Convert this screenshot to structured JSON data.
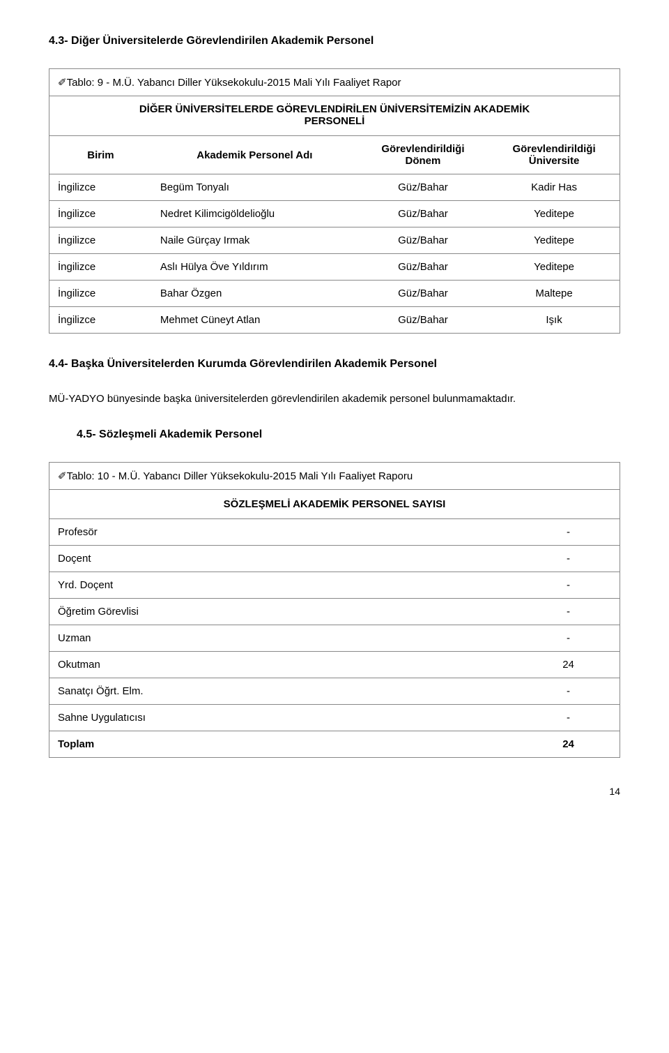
{
  "section43": {
    "heading": "4.3- Diğer Üniversitelerde Görevlendirilen Akademik Personel",
    "table": {
      "caption_prefix": "✐Tablo: 9 - ",
      "caption": "M.Ü. Yabancı Diller Yüksekokulu-2015 Mali Yılı Faaliyet Rapor",
      "subtitle_line1": "DİĞER ÜNİVERSİTELERDE GÖREVLENDİRİLEN ÜNİVERSİTEMİZİN AKADEMİK",
      "subtitle_line2": "PERSONELİ",
      "columns": {
        "c0": "Birim",
        "c1": "Akademik Personel Adı",
        "c2_l1": "Görevlendirildiği",
        "c2_l2": "Dönem",
        "c3_l1": "Görevlendirildiği",
        "c3_l2": "Üniversite"
      },
      "rows": [
        {
          "a": "İngilizce",
          "b": "Begüm Tonyalı",
          "c": "Güz/Bahar",
          "d": "Kadir Has"
        },
        {
          "a": "İngilizce",
          "b": "Nedret Kilimcigöldelioğlu",
          "c": "Güz/Bahar",
          "d": "Yeditepe"
        },
        {
          "a": "İngilizce",
          "b": "Naile Gürçay Irmak",
          "c": "Güz/Bahar",
          "d": "Yeditepe"
        },
        {
          "a": "İngilizce",
          "b": "Aslı Hülya Öve Yıldırım",
          "c": "Güz/Bahar",
          "d": "Yeditepe"
        },
        {
          "a": "İngilizce",
          "b": "Bahar Özgen",
          "c": "Güz/Bahar",
          "d": "Maltepe"
        },
        {
          "a": "İngilizce",
          "b": "Mehmet Cüneyt Atlan",
          "c": "Güz/Bahar",
          "d": "Işık"
        }
      ]
    }
  },
  "section44": {
    "heading": "4.4- Başka Üniversitelerden Kurumda Görevlendirilen Akademik Personel",
    "paragraph": "MÜ-YADYO bünyesinde başka üniversitelerden görevlendirilen akademik personel bulunmamaktadır."
  },
  "section45": {
    "heading": "4.5- Sözleşmeli Akademik Personel",
    "table": {
      "caption_prefix": "✐Tablo: 10 - ",
      "caption": "M.Ü. Yabancı Diller Yüksekokulu-2015 Mali Yılı Faaliyet Raporu",
      "subtitle": "SÖZLEŞMELİ AKADEMİK PERSONEL SAYISI",
      "rows": [
        {
          "label": "Profesör",
          "val": "-"
        },
        {
          "label": "Doçent",
          "val": "-"
        },
        {
          "label": "Yrd. Doçent",
          "val": "-"
        },
        {
          "label": "Öğretim Görevlisi",
          "val": "-"
        },
        {
          "label": "Uzman",
          "val": "-"
        },
        {
          "label": "Okutman",
          "val": "24"
        },
        {
          "label": "Sanatçı Öğrt. Elm.",
          "val": "-"
        },
        {
          "label": "Sahne Uygulatıcısı",
          "val": "-"
        }
      ],
      "total_label": "Toplam",
      "total_val": "24"
    }
  },
  "page_number": "14"
}
